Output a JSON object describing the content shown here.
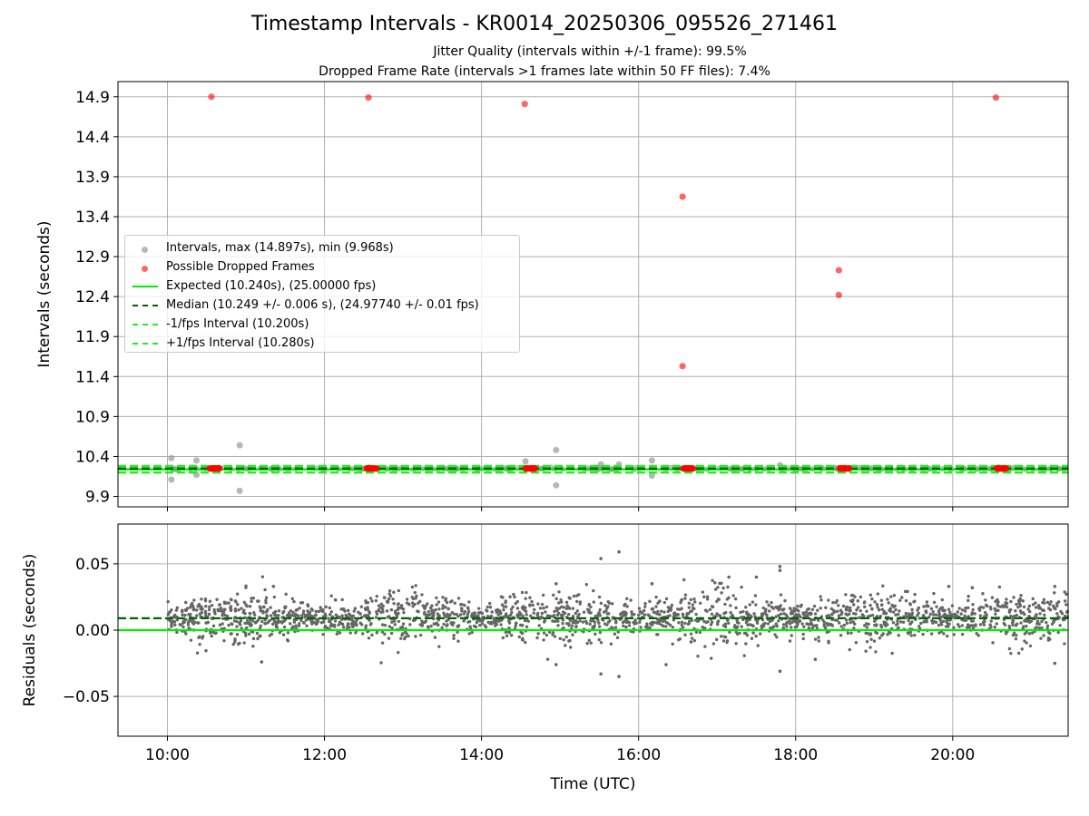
{
  "figure": {
    "title": "Timestamp Intervals - KR0014_20250306_095526_271461",
    "subtitle_line1": "Jitter Quality (intervals within +/-1 frame): 99.5%",
    "subtitle_line2": "Dropped Frame Rate (intervals >1 frames late within 50 FF files): 7.4%"
  },
  "colors": {
    "intervals": "#999999",
    "dropped": "#ff0000",
    "expected": "#00ee00",
    "median": "#006400",
    "bounds": "#22ee22",
    "residuals": "#666666",
    "grid": "#b0b0b0"
  },
  "chart_data": [
    {
      "type": "scatter",
      "panel": "top",
      "ylabel": "Intervals (seconds)",
      "xlabel": "",
      "x_unit": "hours UTC",
      "xlim": [
        9.37,
        21.47
      ],
      "ylim": [
        9.77,
        15.09
      ],
      "yticks": [
        9.9,
        10.4,
        10.9,
        11.4,
        11.9,
        12.4,
        12.9,
        13.4,
        13.9,
        14.4,
        14.9
      ],
      "ytick_labels": [
        "9.9",
        "10.4",
        "10.9",
        "11.4",
        "11.9",
        "12.4",
        "12.9",
        "13.4",
        "13.9",
        "14.4",
        "14.9"
      ],
      "xticks": [
        10,
        12,
        14,
        16,
        18,
        20
      ],
      "grid": true,
      "legend_position": "center-left",
      "series": [
        {
          "name": "Intervals, max (14.897s), min (9.968s)",
          "marker": "circle",
          "color": "#999999",
          "note_points": [
            {
              "x": 10.05,
              "y": 10.38
            },
            {
              "x": 10.05,
              "y": 10.11
            },
            {
              "x": 10.37,
              "y": 10.35
            },
            {
              "x": 10.37,
              "y": 10.17
            },
            {
              "x": 10.92,
              "y": 10.54
            },
            {
              "x": 10.92,
              "y": 9.97
            },
            {
              "x": 14.56,
              "y": 10.34
            },
            {
              "x": 14.95,
              "y": 10.48
            },
            {
              "x": 14.95,
              "y": 10.04
            },
            {
              "x": 15.52,
              "y": 10.3
            },
            {
              "x": 15.75,
              "y": 10.3
            },
            {
              "x": 16.17,
              "y": 10.35
            },
            {
              "x": 16.17,
              "y": 10.16
            },
            {
              "x": 17.8,
              "y": 10.29
            }
          ]
        },
        {
          "name": "Possible Dropped Frames",
          "marker": "circle",
          "color": "#ff0000",
          "points": [
            {
              "x": 10.56,
              "y": 14.9
            },
            {
              "x": 12.56,
              "y": 14.89
            },
            {
              "x": 14.55,
              "y": 14.81
            },
            {
              "x": 16.56,
              "y": 13.65
            },
            {
              "x": 16.56,
              "y": 11.53
            },
            {
              "x": 18.55,
              "y": 12.73
            },
            {
              "x": 18.55,
              "y": 12.42
            },
            {
              "x": 20.55,
              "y": 14.89
            }
          ],
          "clusters_at_10_25": [
            10.6,
            12.6,
            14.62,
            16.63,
            18.62,
            20.62
          ]
        },
        {
          "name": "Expected (10.240s), (25.00000 fps)",
          "type": "hline",
          "y": 10.24,
          "style": "solid",
          "color": "#00ee00"
        },
        {
          "name": "Median (10.249 +/- 0.006 s), (24.97740 +/- 0.01 fps)",
          "type": "hline",
          "y": 10.249,
          "style": "dashed",
          "color": "#006400"
        },
        {
          "name": "-1/fps Interval (10.200s)",
          "type": "hline",
          "y": 10.2,
          "style": "dashed",
          "color": "#22ee22"
        },
        {
          "name": "+1/fps Interval (10.280s)",
          "type": "hline",
          "y": 10.28,
          "style": "dashed",
          "color": "#22ee22"
        }
      ]
    },
    {
      "type": "scatter",
      "panel": "bottom",
      "ylabel": "Residuals (seconds)",
      "xlabel": "Time (UTC)",
      "xlim": [
        9.37,
        21.47
      ],
      "ylim": [
        -0.08,
        0.08
      ],
      "yticks": [
        -0.05,
        0.0,
        0.05
      ],
      "ytick_labels": [
        "−0.05",
        "0.00",
        "0.05"
      ],
      "xticks": [
        10,
        12,
        14,
        16,
        18,
        20
      ],
      "xtick_labels": [
        "10:00",
        "12:00",
        "14:00",
        "16:00",
        "18:00",
        "20:00"
      ],
      "grid": true,
      "series": [
        {
          "name": "",
          "type": "hline",
          "y": 0.009,
          "style": "dashed",
          "color": "#006400"
        },
        {
          "name": "",
          "type": "hline",
          "y": 0.0,
          "style": "solid",
          "color": "#00ee00"
        },
        {
          "name": "",
          "marker": "dot",
          "color": "#666666",
          "outliers": [
            {
              "x": 15.52,
              "y": 0.054
            },
            {
              "x": 15.75,
              "y": 0.059
            },
            {
              "x": 17.8,
              "y": 0.048
            },
            {
              "x": 15.52,
              "y": -0.033
            },
            {
              "x": 15.75,
              "y": -0.035
            },
            {
              "x": 17.8,
              "y": -0.031
            },
            {
              "x": 16.17,
              "y": 0.035
            },
            {
              "x": 14.95,
              "y": 0.035
            },
            {
              "x": 14.95,
              "y": -0.026
            },
            {
              "x": 11.35,
              "y": 0.033
            },
            {
              "x": 11.2,
              "y": -0.024
            },
            {
              "x": 21.3,
              "y": -0.025
            },
            {
              "x": 21.3,
              "y": 0.033
            },
            {
              "x": 19.95,
              "y": 0.033
            },
            {
              "x": 20.25,
              "y": 0.032
            },
            {
              "x": 17.15,
              "y": 0.04
            },
            {
              "x": 17.5,
              "y": 0.04
            },
            {
              "x": 17.8,
              "y": 0.045
            },
            {
              "x": 18.25,
              "y": -0.022
            },
            {
              "x": 16.35,
              "y": -0.026
            }
          ]
        }
      ]
    }
  ]
}
